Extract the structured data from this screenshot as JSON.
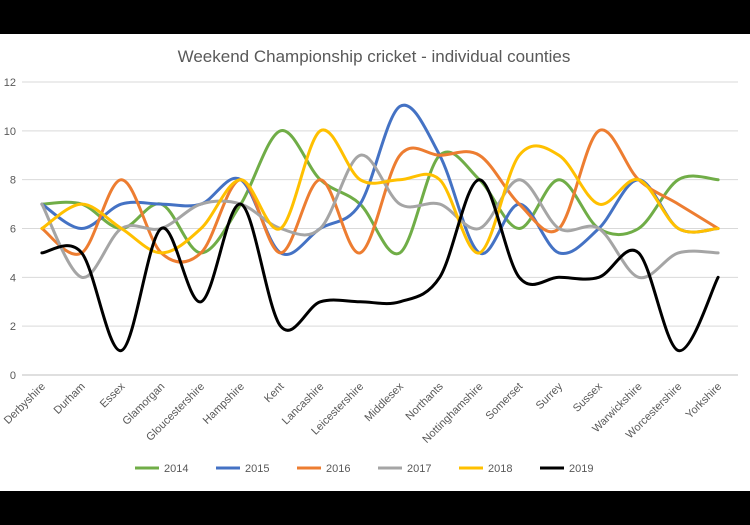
{
  "chart_data": {
    "type": "line",
    "title": "Weekend Championship cricket - individual counties",
    "xlabel": "",
    "ylabel": "",
    "ylim": [
      0,
      12
    ],
    "yticks": [
      0,
      2,
      4,
      6,
      8,
      10,
      12
    ],
    "grid": true,
    "legend_position": "bottom",
    "smooth": true,
    "categories": [
      "Derbyshire",
      "Durham",
      "Essex",
      "Glamorgan",
      "Gloucestershire",
      "Hampshire",
      "Kent",
      "Lancashire",
      "Leicestershire",
      "Middlesex",
      "Northants",
      "Nottinghamshire",
      "Somerset",
      "Surrey",
      "Sussex",
      "Warwickshire",
      "Worcestershire",
      "Yorkshire"
    ],
    "series": [
      {
        "name": "2014",
        "color": "#70AD47",
        "values": [
          7,
          7,
          6,
          7,
          5,
          7,
          10,
          8,
          7,
          5,
          9,
          8,
          6,
          8,
          6,
          6,
          8,
          8
        ]
      },
      {
        "name": "2015",
        "color": "#4472C4",
        "values": [
          7,
          6,
          7,
          7,
          7,
          8,
          5,
          6,
          7,
          11,
          9,
          5,
          7,
          5,
          6,
          8,
          6,
          6
        ]
      },
      {
        "name": "2016",
        "color": "#ED7D31",
        "values": [
          6,
          5,
          8,
          5,
          5,
          8,
          5,
          8,
          5,
          9,
          9,
          9,
          7,
          6,
          10,
          8,
          7,
          6
        ]
      },
      {
        "name": "2017",
        "color": "#A5A5A5",
        "values": [
          7,
          4,
          6,
          6,
          7,
          7,
          6,
          6,
          9,
          7,
          7,
          6,
          8,
          6,
          6,
          4,
          5,
          5
        ]
      },
      {
        "name": "2018",
        "color": "#FFC000",
        "values": [
          6,
          7,
          6,
          5,
          6,
          8,
          6,
          10,
          8,
          8,
          8,
          5,
          9,
          9,
          7,
          8,
          6,
          6
        ]
      },
      {
        "name": "2019",
        "color": "#000000",
        "values": [
          5,
          5,
          1,
          6,
          3,
          7,
          2,
          3,
          3,
          3,
          4,
          8,
          4,
          4,
          4,
          5,
          1,
          4
        ]
      }
    ]
  }
}
